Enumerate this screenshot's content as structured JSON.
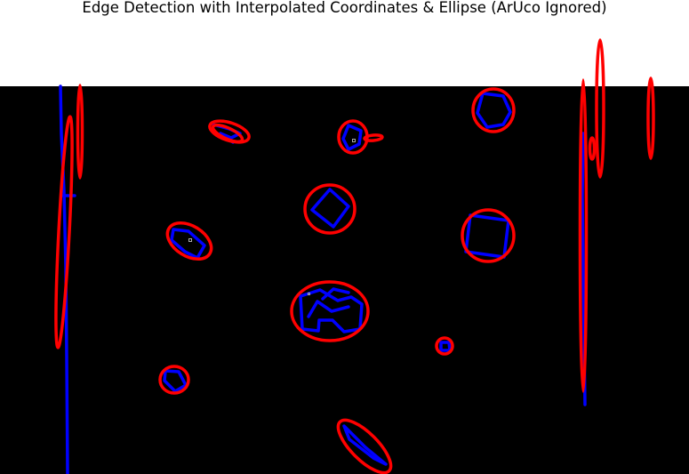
{
  "figure": {
    "title": "Edge Detection with Interpolated Coordinates & Ellipse (ArUco Ignored)"
  },
  "colors": {
    "page_background": "#ffffff",
    "image_background": "#000000",
    "edge_contour": "#0000ff",
    "fitted_ellipse": "#ff0000",
    "marker_point": "#aaaaaa"
  }
}
